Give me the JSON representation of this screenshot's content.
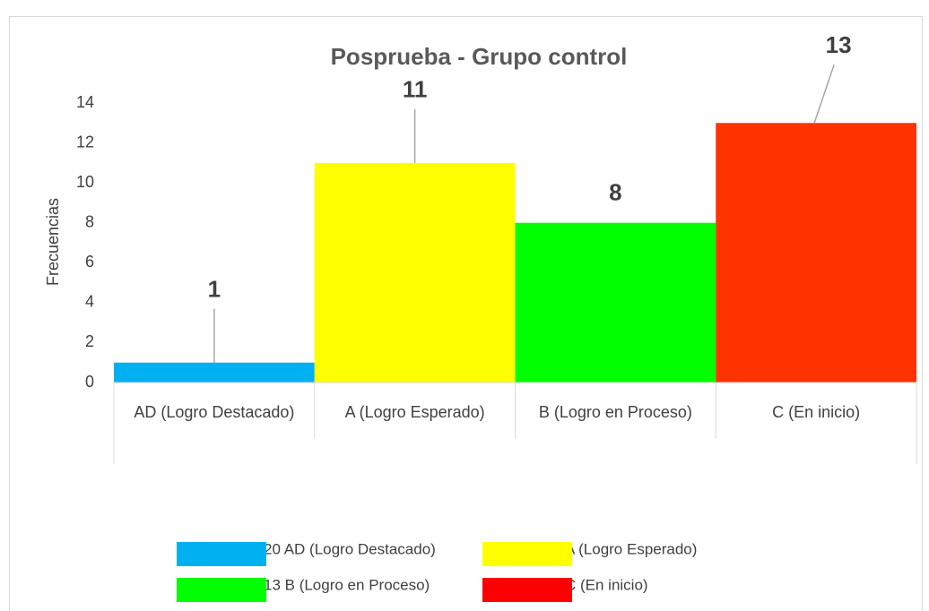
{
  "chart_data": {
    "type": "bar",
    "title": "Posprueba - Grupo control",
    "y_label": "Frecuencias",
    "categories": [
      "AD (Logro Destacado)",
      "A (Logro Esperado)",
      "B (Logro en Proceso)",
      "C (En inicio)"
    ],
    "values": [
      1,
      11,
      8,
      13
    ],
    "colors": [
      "#00b0f0",
      "#ffff00",
      "#00ff00",
      "#ff3300"
    ],
    "ylim": [
      0,
      14
    ],
    "yticks": [
      0,
      2,
      4,
      6,
      8,
      10,
      12,
      14
    ],
    "grid": false,
    "legend": [
      {
        "name": "20 AD (Logro Destacado)",
        "color": "#00b0f0"
      },
      {
        "name": "A (Logro Esperado)",
        "color": "#ffff00"
      },
      {
        "name": "13 B (Logro en Proceso)",
        "color": "#00ff00"
      },
      {
        "name": "C (En inicio)",
        "color": "#ff0000"
      }
    ]
  }
}
